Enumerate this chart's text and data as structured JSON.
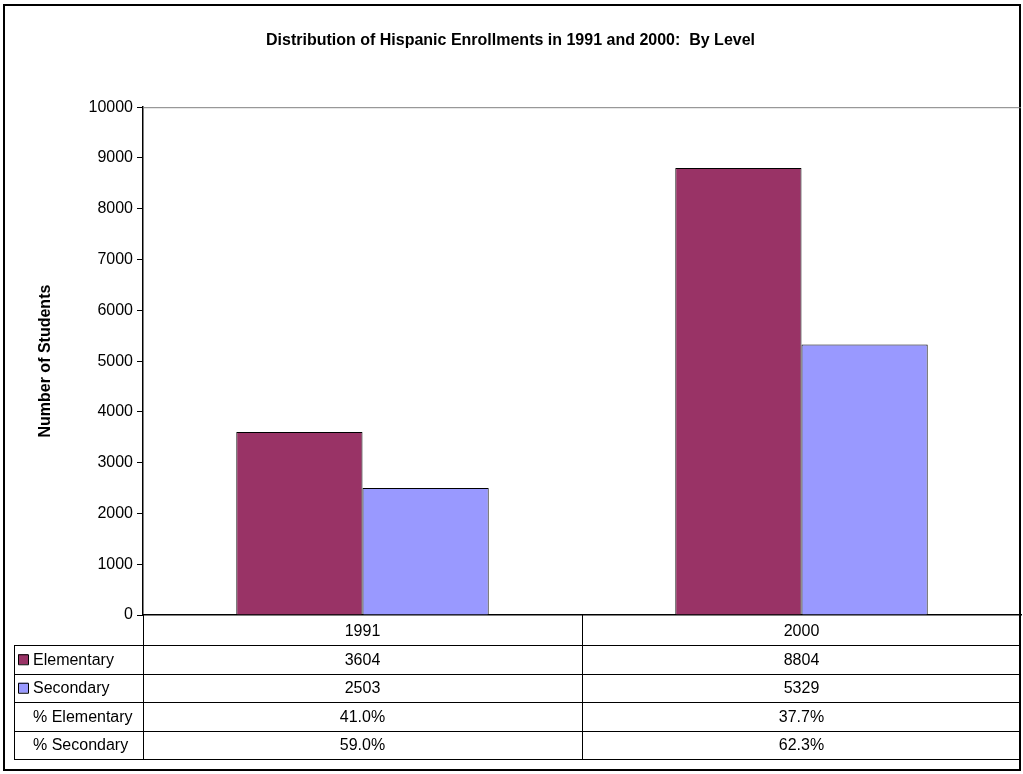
{
  "chart_data": {
    "type": "bar",
    "title": "Distribution of Hispanic Enrollments in 1991 and 2000:  By Level",
    "ylabel": "Number of Students",
    "categories": [
      "1991",
      "2000"
    ],
    "series": [
      {
        "name": "Elementary",
        "color": "#993366",
        "values": [
          3604,
          8804
        ]
      },
      {
        "name": "Secondary",
        "color": "#9999ff",
        "values": [
          2503,
          5329
        ]
      }
    ],
    "ylim": [
      0,
      10000
    ],
    "yticks": [
      0,
      1000,
      2000,
      3000,
      4000,
      5000,
      6000,
      7000,
      8000,
      9000,
      10000
    ],
    "grid": false,
    "legend": "bottom",
    "data_labels": true,
    "annotations": [
      "% Elementary",
      "41.0%",
      "37.7%",
      "% Secondary",
      "59.0%",
      "62.3%"
    ]
  }
}
